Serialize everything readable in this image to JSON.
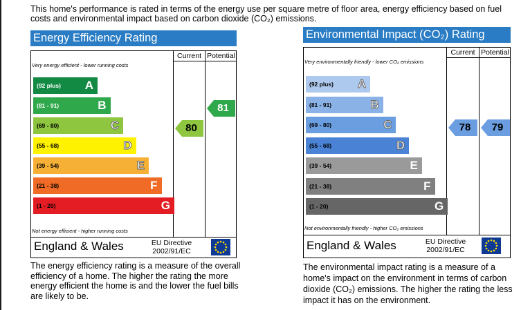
{
  "intro": "This home's performance is rated in terms of the energy use per square metre of floor area, energy efficiency based on fuel costs and environmental impact based on carbon dioxide (CO₂) emissions.",
  "colors": {
    "title_bg": "#2a7cc4",
    "ee_bands": [
      "#138a43",
      "#2ea84a",
      "#8ec63f",
      "#fff200",
      "#f7b036",
      "#f06b25",
      "#e31d23"
    ],
    "ei_bands": [
      "#aec9ee",
      "#8bb2e6",
      "#6b9ee0",
      "#4a83d6",
      "#9a9a9a",
      "#808080",
      "#666666"
    ],
    "current_arrow": "#8ec63f",
    "potential_arrow": "#2ea84a",
    "ei_arrow": "#6b9ee0"
  },
  "chart_data": [
    {
      "type": "bar",
      "title": "Energy Efficiency Rating",
      "columns": [
        "Current",
        "Potential"
      ],
      "top_note": "Very energy efficient - lower running costs",
      "bottom_note": "Not energy efficient - higher running costs",
      "bands": [
        {
          "range": "(92 plus)",
          "letter": "A"
        },
        {
          "range": "(81 - 91)",
          "letter": "B"
        },
        {
          "range": "(69 - 80)",
          "letter": "C"
        },
        {
          "range": "(55 - 68)",
          "letter": "D"
        },
        {
          "range": "(39 - 54)",
          "letter": "E"
        },
        {
          "range": "(21 - 38)",
          "letter": "F"
        },
        {
          "range": "(1 - 20)",
          "letter": "G"
        }
      ],
      "current": 80,
      "potential": 81,
      "footer_region": "England & Wales",
      "footer_directive": [
        "EU Directive",
        "2002/91/EC"
      ],
      "description": "The energy efficiency rating is a measure of the overall efficiency of a home. The higher the rating the more energy efficient the home is and the lower the fuel bills are likely to be."
    },
    {
      "type": "bar",
      "title": "Environmental Impact (CO₂) Rating",
      "columns": [
        "Current",
        "Potential"
      ],
      "top_note": "Very environmentally friendly - lower CO₂ emissions",
      "bottom_note": "Not environmentally friendly - higher CO₂ emissions",
      "bands": [
        {
          "range": "(92 plus)",
          "letter": "A"
        },
        {
          "range": "(81 - 91)",
          "letter": "B"
        },
        {
          "range": "(69 - 80)",
          "letter": "C"
        },
        {
          "range": "(55 - 68)",
          "letter": "D"
        },
        {
          "range": "(39 - 54)",
          "letter": "E"
        },
        {
          "range": "(21 - 38)",
          "letter": "F"
        },
        {
          "range": "(1 - 20)",
          "letter": "G"
        }
      ],
      "current": 78,
      "potential": 79,
      "footer_region": "England & Wales",
      "footer_directive": [
        "EU Directive",
        "2002/91/EC"
      ],
      "description": "The environmental impact rating is a measure of a home's impact on the environment in terms of carbon dioxide (CO₂) emissions. The higher the rating the less impact it has on the environment."
    }
  ]
}
